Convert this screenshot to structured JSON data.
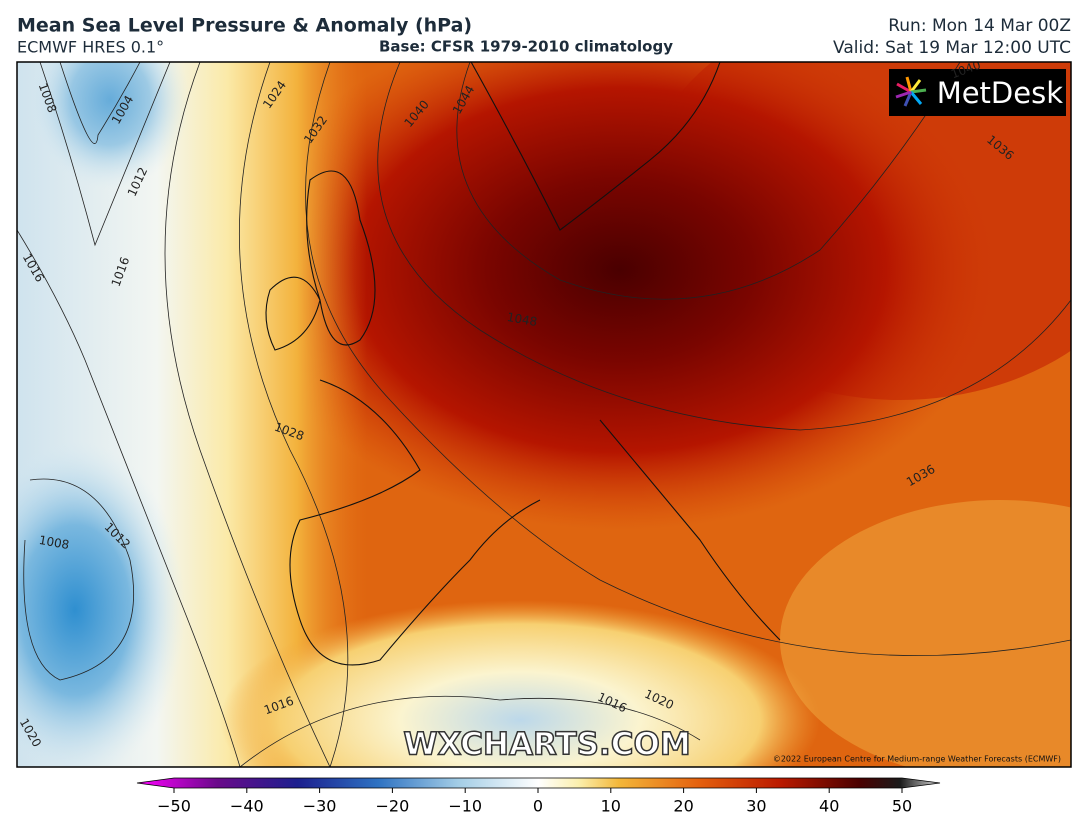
{
  "header": {
    "title": "Mean Sea Level Pressure & Anomaly (hPa)",
    "model": "ECMWF HRES 0.1°",
    "base": "Base: CFSR 1979-2010 climatology",
    "run": "Run: Mon 14 Mar 00Z",
    "valid": "Valid: Sat 19 Mar 12:00 UTC"
  },
  "map": {
    "logo": "MetDesk",
    "watermark": "WXCHARTS.COM",
    "copyright": "©2022 European Centre for Medium-range Weather Forecasts (ECMWF)",
    "contour_labels": [
      "1008",
      "1004",
      "1012",
      "1016",
      "1016",
      "1024",
      "1032",
      "1040",
      "1044",
      "1048",
      "1036",
      "1028",
      "1008",
      "1012",
      "1036",
      "1016",
      "1016",
      "1020",
      "1020",
      "1040"
    ]
  },
  "colorbar": {
    "ticks": [
      {
        "value": -50,
        "label": "−50"
      },
      {
        "value": -40,
        "label": "−40"
      },
      {
        "value": -30,
        "label": "−30"
      },
      {
        "value": -20,
        "label": "−20"
      },
      {
        "value": -10,
        "label": "−10"
      },
      0,
      10,
      20,
      30,
      40,
      50
    ]
  }
}
